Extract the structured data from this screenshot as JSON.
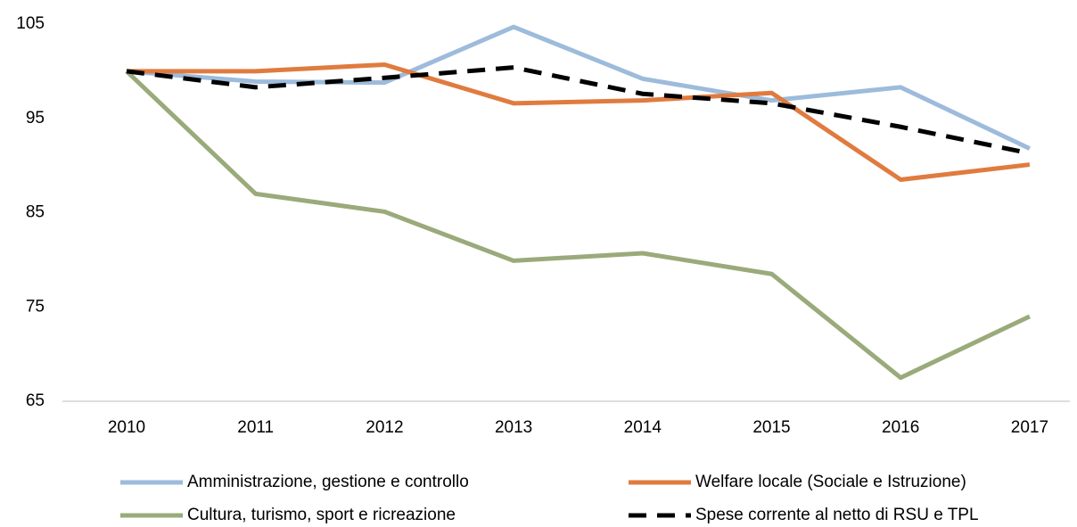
{
  "chart_data": {
    "type": "line",
    "categories": [
      "2010",
      "2011",
      "2012",
      "2013",
      "2014",
      "2015",
      "2016",
      "2017"
    ],
    "series": [
      {
        "name": "Amministrazione, gestione e controllo",
        "color": "#9dbbdb",
        "values": [
          100,
          98.9,
          98.8,
          104.7,
          99.2,
          96.9,
          98.3,
          91.8
        ]
      },
      {
        "name": "Welfare locale (Sociale e Istruzione)",
        "color": "#e07b3f",
        "values": [
          100,
          100,
          100.7,
          96.6,
          96.9,
          97.7,
          88.5,
          90.1
        ]
      },
      {
        "name": "Cultura, turismo, sport e ricreazione",
        "color": "#9aaa7a",
        "values": [
          100,
          87.0,
          85.1,
          79.9,
          80.7,
          78.5,
          67.5,
          74.0
        ]
      },
      {
        "name": "Spese corrente al netto di RSU e TPL",
        "color": "#000000",
        "dashed": true,
        "values": [
          100,
          98.3,
          99.3,
          100.4,
          97.6,
          96.6,
          94.1,
          91.3
        ]
      }
    ],
    "ylim": [
      65,
      105
    ],
    "yticks": [
      65,
      75,
      85,
      95,
      105
    ],
    "grid": false
  }
}
